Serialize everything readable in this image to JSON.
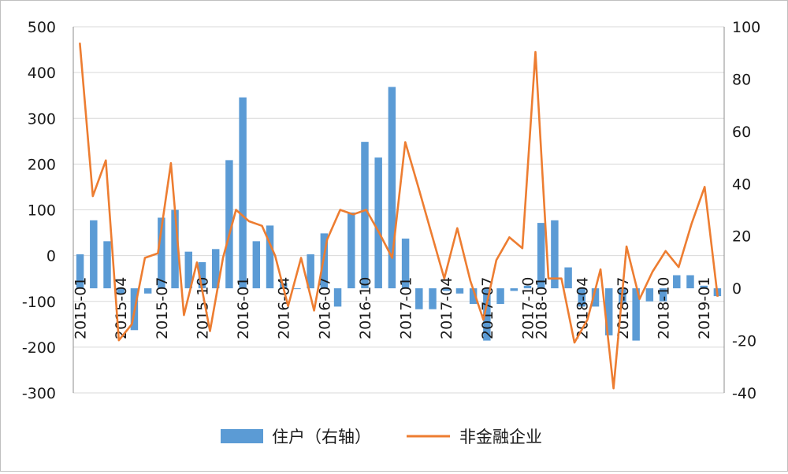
{
  "chart_data": {
    "type": "bar+line",
    "title": "",
    "left_axis": {
      "min": -300,
      "max": 500,
      "step": 100,
      "ticks": [
        "-300",
        "-200",
        "-100",
        "0",
        "100",
        "200",
        "300",
        "400",
        "500"
      ]
    },
    "right_axis": {
      "min": -40,
      "max": 100,
      "step": 20,
      "ticks": [
        "-40",
        "-20",
        "0",
        "20",
        "40",
        "60",
        "80",
        "100"
      ]
    },
    "grid": true,
    "legend_position": "bottom",
    "x_tick_labels": [
      "2015-01",
      "2015-04",
      "2015-07",
      "2015-10",
      "2016-01",
      "2016-04",
      "2016-07",
      "2016-10",
      "2017-01",
      "2017-04",
      "2017-07",
      "2017-10",
      "2018-01",
      "2018-04",
      "2018-07",
      "2018-10",
      "2019-01"
    ],
    "series": [
      {
        "name": "住户（右轴）",
        "kind": "bar",
        "axis": "right",
        "color": "#5b9bd5",
        "values": [
          13,
          26,
          18,
          -2,
          -16,
          -2,
          27,
          30,
          14,
          10,
          15,
          49,
          73,
          18,
          24,
          2,
          0,
          13,
          21,
          -7,
          29,
          56,
          50,
          77,
          19,
          -8,
          -8,
          -1,
          -2,
          -6,
          -20,
          -6,
          -1,
          1,
          25,
          26,
          8,
          -7,
          -7,
          -18,
          -6,
          -20,
          -5,
          -5,
          5,
          5,
          1,
          -3
        ],
        "point_labels": [
          "2015-01",
          "2015-02",
          "2015-03",
          "2015-04",
          "2015-05",
          "2015-06",
          "2015-07",
          "2015-08",
          "2015-09",
          "2015-10",
          "2015-11",
          "2015-12",
          "2016-01",
          "2016-02",
          "2016-03",
          "2016-04",
          "2016-05",
          "2016-06",
          "2016-07",
          "2016-08",
          "2016-09",
          "2016-10",
          "2016-11",
          "2016-12",
          "2017-01",
          "2017-02",
          "2017-03",
          "2017-04",
          "2017-05",
          "2017-06",
          "2017-07",
          "2017-08",
          "2017-09",
          "2017-10",
          "2018-01",
          "2018-02",
          "2018-03",
          "2018-04",
          "2018-05",
          "2018-06",
          "2018-07",
          "2018-08",
          "2018-09",
          "2018-10",
          "2018-11",
          "2018-12",
          "2019-01",
          "2019-02"
        ]
      },
      {
        "name": "非金融企业",
        "kind": "line",
        "axis": "left",
        "color": "#ed7d31",
        "values": [
          465,
          130,
          208,
          -185,
          -150,
          -5,
          5,
          202,
          -130,
          -15,
          -165,
          -5,
          100,
          75,
          65,
          0,
          -110,
          -5,
          -120,
          35,
          100,
          90,
          100,
          50,
          -5,
          248,
          150,
          50,
          -50,
          60,
          -55,
          -140,
          -10,
          40,
          16,
          445,
          -50,
          -50,
          -190,
          -140,
          -30,
          -290,
          20,
          -95,
          -35,
          10,
          -25,
          70,
          150,
          -90
        ],
        "point_labels": [
          "2015-01",
          "2015-02",
          "2015-03",
          "2015-04",
          "2015-05",
          "2015-06",
          "2015-07",
          "2015-08",
          "2015-09",
          "2015-10",
          "2015-11",
          "2015-12",
          "2016-01",
          "2016-02",
          "2016-03",
          "2016-04",
          "2016-05",
          "2016-06",
          "2016-07",
          "2016-08",
          "2016-09",
          "2016-10",
          "2016-11",
          "2016-12",
          "2017-01",
          "2017-02",
          "2017-03",
          "2017-04",
          "2017-05",
          "2017-06",
          "2017-07",
          "2017-08",
          "2017-09",
          "2017-10",
          "2017-11",
          "2018-01",
          "2018-02",
          "2018-03",
          "2018-04",
          "2018-05",
          "2018-06",
          "2018-07",
          "2018-08",
          "2018-09",
          "2018-10",
          "2018-11",
          "2018-12",
          "2019-01",
          "2019-02",
          "2019-03"
        ]
      }
    ]
  }
}
